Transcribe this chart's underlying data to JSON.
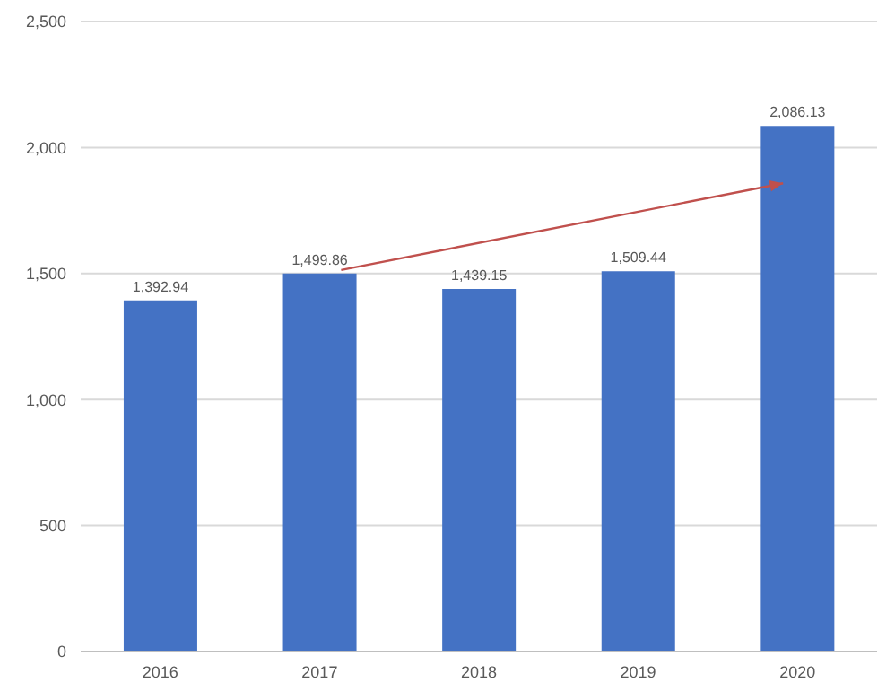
{
  "chart_data": {
    "type": "bar",
    "categories": [
      "2016",
      "2017",
      "2018",
      "2019",
      "2020"
    ],
    "values": [
      1392.94,
      1499.86,
      1439.15,
      1509.44,
      2086.13
    ],
    "color": "#4472c4",
    "ylim": [
      0,
      2500
    ],
    "yticks": [
      0,
      {
        "value": 500,
        "label": "500"
      },
      {
        "value": 1000,
        "label": "1,000"
      },
      {
        "value": 1500,
        "label": "1,500"
      },
      {
        "value": 2000,
        "label": "2,000"
      },
      {
        "value": 2500,
        "label": "2,500"
      }
    ],
    "value_labels": [
      "1,392.94",
      "1,499.86",
      "1,439.15",
      "1,509.44",
      "2,086.13"
    ],
    "grid": "y",
    "legend": false
  }
}
